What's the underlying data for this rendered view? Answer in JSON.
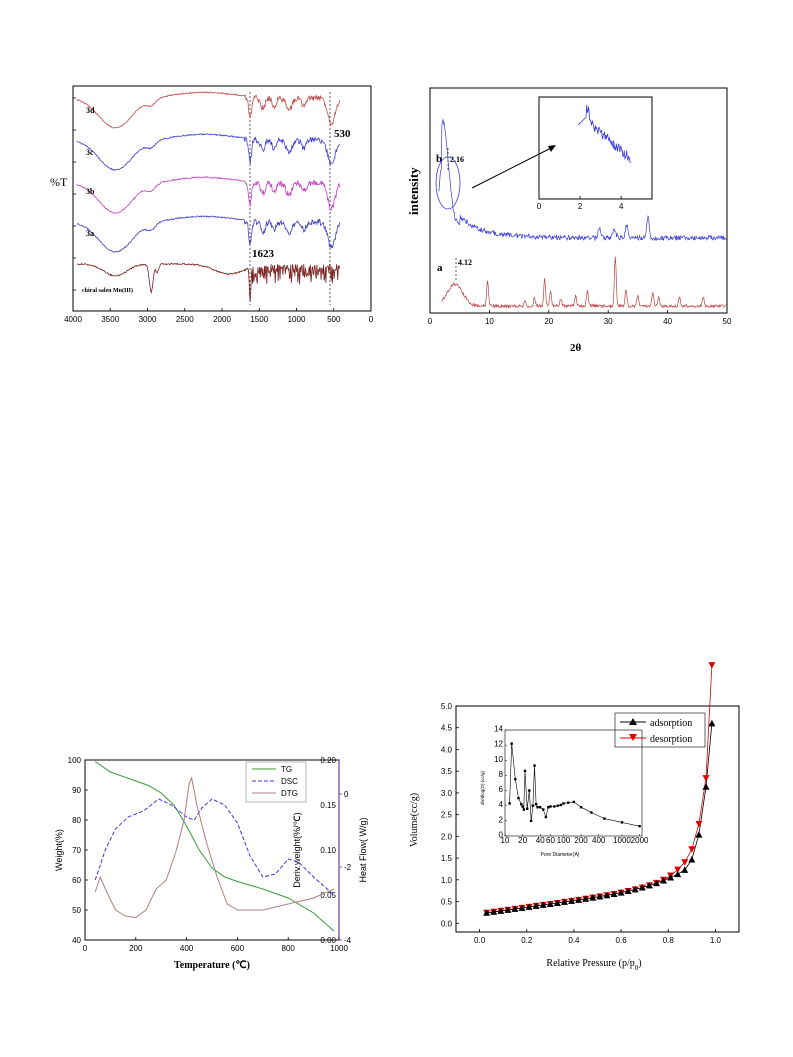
{
  "chart_data": [
    {
      "type": "line",
      "id": "ftir",
      "ylabel": "%T",
      "xlim": [
        4000,
        0
      ],
      "x_ticks": [
        "4000",
        "3500",
        "3000",
        "2500",
        "2000",
        "1500",
        "1000",
        "500",
        "0"
      ],
      "series": [
        {
          "name": "3d",
          "color": "#c0504d"
        },
        {
          "name": "3c",
          "color": "#4040d0"
        },
        {
          "name": "3b",
          "color": "#c040c0"
        },
        {
          "name": "3a",
          "color": "#4040c0"
        },
        {
          "name": "chiral salen Mn(III)",
          "color": "#7b2020"
        }
      ],
      "annotations": [
        "530",
        "1623"
      ],
      "reference_lines": [
        1623,
        530
      ]
    },
    {
      "type": "line",
      "id": "xrd",
      "xlabel": "2θ",
      "ylabel": "intensity",
      "xlim": [
        0,
        50
      ],
      "x_ticks": [
        "0",
        "10",
        "20",
        "30",
        "40",
        "50"
      ],
      "inset_ticks": [
        "0",
        "2",
        "4"
      ],
      "series": [
        {
          "name": "b",
          "color": "#3a3ae0",
          "peak_label": "2.16"
        },
        {
          "name": "a",
          "color": "#c04040",
          "peak_label": "4.12"
        }
      ]
    },
    {
      "type": "line",
      "id": "thermal",
      "xlabel": "Temperature (℃)",
      "ylabel_left": "Weight(%)",
      "ylabel_right1": "Deriv.weight(%/℃)",
      "ylabel_right2": "Heat Flow( W/g)",
      "xlim": [
        0,
        1000
      ],
      "ylim": [
        40,
        100
      ],
      "x_ticks": [
        "0",
        "200",
        "400",
        "600",
        "800",
        "1000"
      ],
      "y_ticks": [
        "40",
        "50",
        "60",
        "70",
        "80",
        "90",
        "100"
      ],
      "y2_ticks": [
        "0.00",
        "0.05",
        "0.10",
        "0.15",
        "0.20"
      ],
      "y3_ticks": [
        "-4",
        "-2",
        "0"
      ],
      "series": [
        {
          "name": "TG",
          "color": "#3a9a3a",
          "style": "solid"
        },
        {
          "name": "DSC",
          "color": "#3a3ae0",
          "style": "dashed"
        },
        {
          "name": "DTG",
          "color": "#b08080",
          "style": "solid"
        }
      ]
    },
    {
      "type": "line",
      "id": "bet",
      "xlabel": "Relative Pressure (p/p",
      "xlabel_sub": "0",
      "xlabel_end": ")",
      "ylabel": "Volume(cc/g)",
      "xlim": [
        -0.1,
        1.1
      ],
      "ylim": [
        -0.2,
        5.0
      ],
      "x_ticks": [
        "0.0",
        "0.2",
        "0.4",
        "0.6",
        "0.8",
        "1.0"
      ],
      "y_ticks": [
        "0.0",
        "0.5",
        "1.0",
        "1.5",
        "2.0",
        "2.5",
        "3.0",
        "3.5",
        "4.0",
        "4.5",
        "5.0"
      ],
      "series": [
        {
          "name": "adsorption",
          "color": "#000000",
          "marker": "triangle-up"
        },
        {
          "name": "desorption",
          "color": "#e00000",
          "marker": "triangle-down"
        }
      ],
      "inset": {
        "xlabel": "Pore Diameter(A)",
        "ylabel": "dV/dlog(D) (cc/g)",
        "x_ticks": [
          "10",
          "20",
          "40",
          "60",
          "100",
          "200",
          "400",
          "1000",
          "2000"
        ],
        "y_ticks": [
          "0",
          "2",
          "4",
          "6",
          "8",
          "10",
          "12",
          "14"
        ],
        "x": [
          12,
          13,
          15,
          17,
          19,
          20,
          21,
          22,
          24,
          26,
          28,
          30,
          32,
          34,
          36,
          40,
          45,
          50,
          55,
          60,
          70,
          80,
          90,
          100,
          120,
          150,
          200,
          300,
          500,
          1000,
          2000
        ],
        "y": [
          4.3,
          12.2,
          7.5,
          5.0,
          4.2,
          3.9,
          3.5,
          8.6,
          3.6,
          6.0,
          2.0,
          4.0,
          9.3,
          4.2,
          3.8,
          3.8,
          3.5,
          2.5,
          3.8,
          3.9,
          3.9,
          4.0,
          4.1,
          4.3,
          4.4,
          4.5,
          3.8,
          3.1,
          2.3,
          1.8,
          1.3
        ]
      }
    }
  ]
}
